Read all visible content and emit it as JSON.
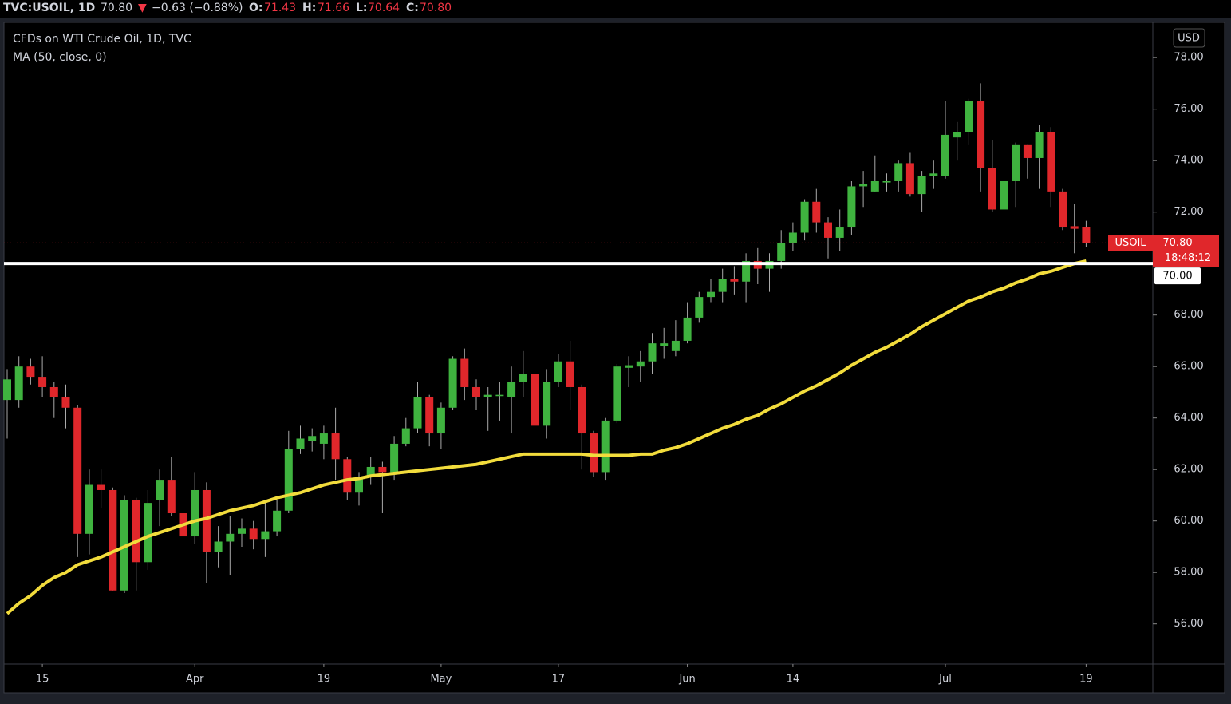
{
  "header": {
    "symbol": "TVC:USOIL, 1D",
    "last": "70.80",
    "arrow": "▼",
    "change": "−0.63 (−0.88%)",
    "o_label": "O:",
    "o": "71.43",
    "h_label": "H:",
    "h": "71.66",
    "l_label": "L:",
    "l": "70.64",
    "c_label": "C:",
    "c": "70.80"
  },
  "chart_data": {
    "type": "candlestick",
    "title": "CFDs on WTI Crude Oil, 1D, TVC",
    "currency": "USD",
    "up_color": "#3fb33f",
    "down_color": "#e0272b",
    "grid": false,
    "categories": [
      null,
      null,
      null,
      "15",
      null,
      null,
      null,
      null,
      null,
      null,
      null,
      null,
      null,
      null,
      null,
      null,
      "Apr",
      null,
      null,
      null,
      null,
      null,
      null,
      null,
      null,
      null,
      null,
      "19",
      null,
      null,
      null,
      null,
      null,
      null,
      null,
      null,
      null,
      "May",
      null,
      null,
      null,
      null,
      null,
      null,
      null,
      null,
      null,
      "17",
      null,
      null,
      null,
      null,
      null,
      null,
      null,
      null,
      null,
      null,
      "Jun",
      null,
      null,
      null,
      null,
      null,
      null,
      null,
      null,
      "14",
      null,
      null,
      null,
      null,
      null,
      null,
      null,
      null,
      null,
      null,
      null,
      null,
      "Jul",
      null,
      null,
      null,
      null,
      null,
      null,
      null,
      null,
      null,
      null,
      null,
      "19"
    ],
    "open": [
      64.7,
      64.7,
      66.0,
      65.6,
      65.2,
      64.8,
      64.4,
      59.5,
      61.4,
      61.2,
      57.3,
      60.8,
      58.4,
      60.8,
      61.6,
      60.3,
      59.4,
      61.2,
      58.8,
      59.2,
      59.5,
      59.7,
      59.3,
      59.6,
      60.4,
      62.8,
      63.1,
      63.0,
      63.4,
      62.4,
      61.1,
      61.7,
      62.1,
      61.9,
      63.0,
      63.6,
      64.8,
      63.4,
      64.4,
      66.3,
      65.2,
      64.8,
      64.85,
      64.8,
      65.4,
      65.7,
      63.7,
      65.4,
      66.2,
      65.2,
      63.4,
      61.9,
      63.9,
      65.95,
      66.0,
      66.2,
      66.8,
      66.6,
      67.0,
      67.9,
      68.7,
      68.9,
      69.4,
      69.3,
      70.1,
      69.8,
      70.1,
      70.8,
      71.2,
      72.4,
      71.6,
      71.0,
      71.4,
      73.0,
      72.8,
      73.15,
      73.2,
      73.9,
      72.7,
      73.4,
      73.4,
      74.9,
      75.1,
      76.3,
      73.7,
      72.1,
      73.2,
      74.6,
      74.1,
      75.1,
      72.8,
      71.45,
      71.43
    ],
    "high": [
      65.9,
      66.4,
      66.3,
      66.4,
      65.4,
      65.3,
      64.5,
      62.0,
      62.0,
      61.3,
      61.0,
      60.9,
      61.2,
      62.0,
      62.5,
      60.6,
      61.9,
      61.5,
      59.8,
      60.2,
      60.1,
      60.0,
      60.7,
      60.8,
      63.5,
      63.7,
      63.6,
      63.7,
      64.4,
      62.5,
      61.9,
      62.5,
      62.3,
      63.3,
      64.0,
      65.4,
      64.9,
      64.6,
      66.4,
      66.7,
      65.5,
      65.2,
      65.4,
      66.0,
      66.6,
      66.1,
      65.9,
      66.5,
      67.0,
      65.3,
      63.5,
      64.0,
      66.1,
      66.4,
      66.6,
      67.3,
      67.5,
      67.8,
      68.5,
      68.9,
      69.4,
      69.8,
      69.9,
      70.4,
      70.6,
      70.4,
      71.3,
      71.6,
      72.5,
      72.9,
      71.8,
      72.1,
      73.2,
      73.6,
      74.2,
      73.5,
      74.0,
      74.3,
      73.6,
      74.0,
      76.3,
      75.5,
      76.4,
      77.0,
      74.8,
      73.2,
      74.7,
      74.6,
      75.4,
      75.3,
      72.9,
      72.3,
      71.66
    ],
    "low": [
      63.2,
      64.4,
      65.3,
      64.8,
      64.0,
      63.6,
      58.6,
      58.7,
      60.5,
      57.3,
      57.2,
      57.3,
      58.1,
      59.8,
      60.2,
      58.9,
      59.1,
      57.6,
      58.2,
      57.9,
      59.0,
      58.9,
      58.6,
      59.4,
      60.3,
      62.6,
      62.7,
      62.4,
      61.6,
      60.8,
      60.6,
      61.4,
      60.3,
      61.6,
      62.9,
      63.4,
      62.9,
      62.8,
      64.3,
      64.7,
      64.3,
      63.5,
      63.9,
      63.4,
      64.8,
      63.0,
      63.2,
      65.2,
      64.3,
      62.0,
      61.7,
      61.6,
      63.8,
      65.2,
      65.4,
      65.7,
      66.3,
      66.4,
      66.9,
      67.7,
      68.5,
      68.5,
      68.8,
      68.5,
      69.2,
      68.9,
      69.8,
      70.5,
      70.9,
      71.2,
      70.2,
      70.5,
      71.1,
      72.2,
      72.8,
      72.8,
      72.8,
      72.6,
      72.0,
      72.9,
      73.3,
      74.0,
      74.6,
      72.8,
      72.0,
      70.9,
      72.2,
      73.3,
      72.9,
      72.2,
      71.3,
      70.4,
      70.64
    ],
    "close": [
      65.5,
      66.0,
      65.6,
      65.2,
      64.8,
      64.4,
      59.5,
      61.4,
      61.2,
      57.3,
      60.8,
      58.4,
      60.7,
      61.6,
      60.3,
      59.4,
      61.2,
      58.8,
      59.2,
      59.5,
      59.7,
      59.3,
      59.6,
      60.4,
      62.8,
      63.2,
      63.3,
      63.4,
      62.4,
      61.1,
      61.7,
      62.1,
      61.9,
      63.0,
      63.6,
      64.8,
      63.4,
      64.4,
      66.3,
      65.2,
      64.8,
      64.9,
      64.9,
      65.4,
      65.7,
      63.7,
      65.4,
      66.2,
      65.2,
      63.4,
      61.9,
      63.9,
      66.0,
      66.05,
      66.2,
      66.9,
      66.9,
      67.0,
      67.9,
      68.7,
      68.9,
      69.4,
      69.3,
      70.1,
      69.8,
      70.1,
      70.8,
      71.2,
      72.4,
      71.6,
      71.0,
      71.4,
      73.0,
      73.1,
      73.2,
      73.2,
      73.9,
      72.7,
      73.4,
      73.5,
      75.0,
      75.1,
      76.3,
      73.7,
      72.1,
      73.2,
      74.6,
      74.1,
      75.1,
      72.8,
      71.4,
      71.35,
      70.8
    ],
    "overlay": {
      "name": "MA (50, close, 0)",
      "color": "#f2dc3c",
      "values": [
        56.4,
        56.8,
        57.1,
        57.5,
        57.8,
        58.0,
        58.3,
        58.45,
        58.6,
        58.8,
        59.0,
        59.2,
        59.4,
        59.55,
        59.7,
        59.85,
        60.0,
        60.1,
        60.25,
        60.4,
        60.5,
        60.6,
        60.75,
        60.9,
        61.0,
        61.1,
        61.25,
        61.4,
        61.5,
        61.6,
        61.65,
        61.75,
        61.8,
        61.85,
        61.9,
        61.95,
        62.0,
        62.05,
        62.1,
        62.15,
        62.2,
        62.3,
        62.4,
        62.5,
        62.6,
        62.6,
        62.6,
        62.6,
        62.6,
        62.6,
        62.55,
        62.55,
        62.55,
        62.55,
        62.6,
        62.6,
        62.75,
        62.85,
        63.0,
        63.2,
        63.4,
        63.6,
        63.75,
        63.95,
        64.1,
        64.35,
        64.55,
        64.8,
        65.05,
        65.25,
        65.5,
        65.75,
        66.05,
        66.3,
        66.55,
        66.75,
        67.0,
        67.25,
        67.55,
        67.8,
        68.05,
        68.3,
        68.55,
        68.7,
        68.9,
        69.05,
        69.25,
        69.4,
        69.6,
        69.7,
        69.85,
        70.0,
        70.1
      ]
    },
    "hline": {
      "value": 70,
      "label": "70.00",
      "color": "#ffffff"
    },
    "last_price": {
      "name": "USOIL",
      "value": 70.8,
      "label": "70.80",
      "countdown": "18:48:12",
      "color": "#e0272b"
    },
    "ylim": [
      54.44,
      79.37
    ],
    "yticks": [
      {
        "value": 56,
        "label": "56.00"
      },
      {
        "value": 58,
        "label": "58.00"
      },
      {
        "value": 60,
        "label": "60.00"
      },
      {
        "value": 62,
        "label": "62.00"
      },
      {
        "value": 64,
        "label": "64.00"
      },
      {
        "value": 66,
        "label": "66.00"
      },
      {
        "value": 68,
        "label": "68.00"
      },
      {
        "value": 72,
        "label": "72.00"
      },
      {
        "value": 74,
        "label": "74.00"
      },
      {
        "value": 76,
        "label": "76.00"
      },
      {
        "value": 78,
        "label": "78.00"
      }
    ]
  }
}
